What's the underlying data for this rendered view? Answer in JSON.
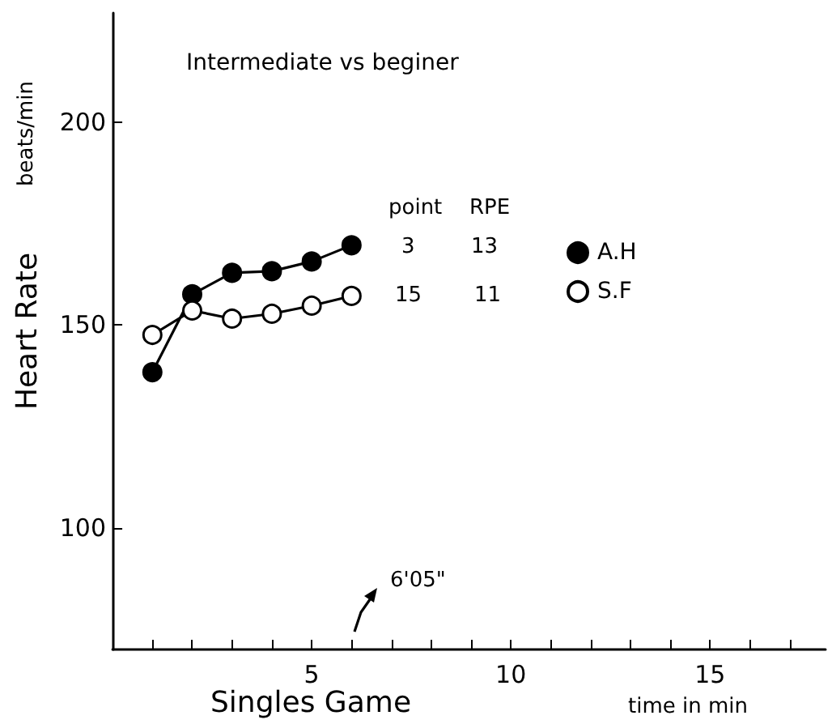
{
  "chart_data": {
    "type": "line",
    "title": "Intermediate vs beginer",
    "xlabel": "Singles Game",
    "ylabel": "Heart Rate",
    "x": [
      1,
      2,
      3,
      4,
      5,
      6
    ],
    "series": [
      {
        "name": "A.H",
        "color": "#000000",
        "values": [
          138.4,
          157.6,
          162.9,
          163.3,
          165.7,
          169.7
        ]
      },
      {
        "name": "S.F",
        "color": "#ffffff",
        "values": [
          147.6,
          153.6,
          151.6,
          152.8,
          154.8,
          157.2
        ]
      }
    ],
    "xlim": [
      0,
      17.9
    ],
    "ylim": [
      70,
      227
    ],
    "xticks": [
      {
        "value": 1,
        "label": null
      },
      {
        "value": 2,
        "label": null
      },
      {
        "value": 3,
        "label": null
      },
      {
        "value": 4,
        "label": null
      },
      5,
      {
        "value": 6,
        "label": null
      },
      {
        "value": 7,
        "label": null
      },
      {
        "value": 8,
        "label": null
      },
      {
        "value": 9,
        "label": null
      },
      10,
      {
        "value": 11,
        "label": null
      },
      {
        "value": 12,
        "label": null
      },
      {
        "value": 13,
        "label": null
      },
      {
        "value": 14,
        "label": null
      },
      15,
      {
        "value": 16,
        "label": null
      },
      {
        "value": 17,
        "label": null
      }
    ],
    "yticks": [
      100,
      150,
      200
    ],
    "annotations": [
      "beats/min",
      "time in min",
      "point",
      "RPE",
      "3",
      "13",
      "15",
      "11",
      "6'05\""
    ],
    "marker": "circle",
    "line_style": "solid",
    "grid": false,
    "legend": "right"
  }
}
